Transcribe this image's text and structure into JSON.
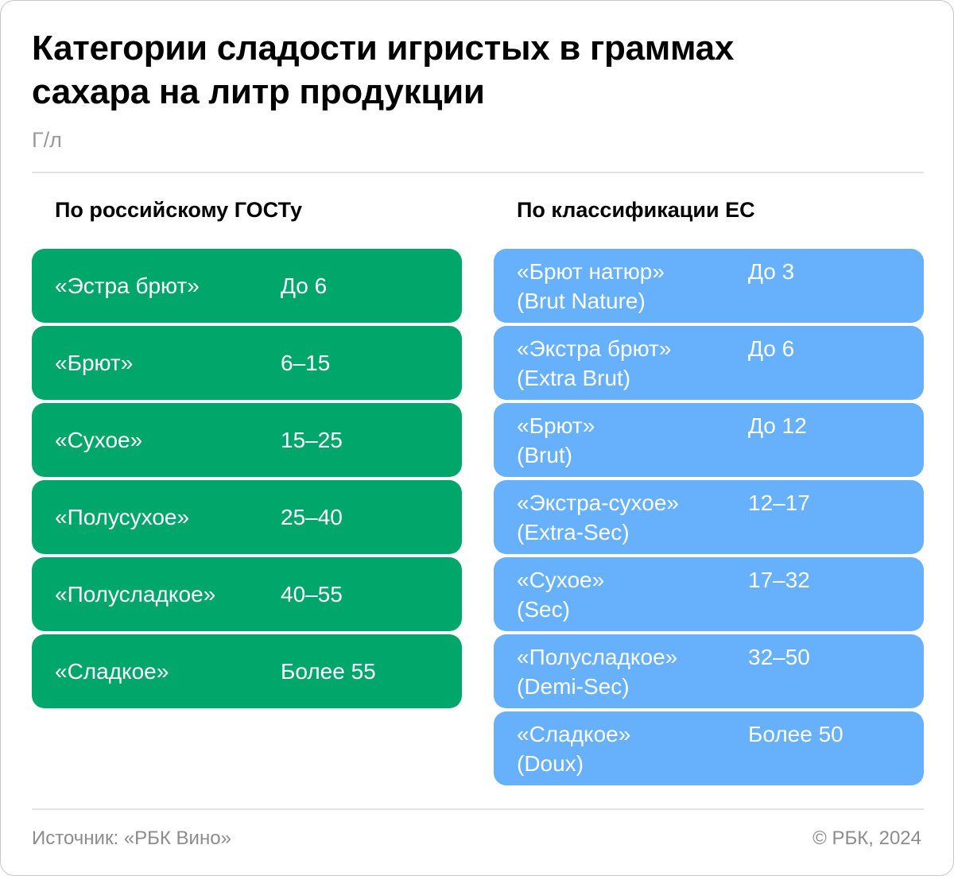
{
  "header": {
    "title": "Категории сладости игристых в граммах сахара на литр продукции",
    "unit": "Г/л"
  },
  "columns": {
    "russia": {
      "heading": "По российскому ГОСТу",
      "color": "#00a66a",
      "rows": [
        {
          "name": "«Эстра брют»",
          "value": "До 6"
        },
        {
          "name": "«Брют»",
          "value": "6–15"
        },
        {
          "name": "«Сухое»",
          "value": "15–25"
        },
        {
          "name": "«Полусухое»",
          "value": "25–40"
        },
        {
          "name": "«Полусладкое»",
          "value": "40–55"
        },
        {
          "name": "«Сладкое»",
          "value": "Более 55"
        }
      ]
    },
    "eu": {
      "heading": "По классификации ЕС",
      "color": "#66b0fc",
      "rows": [
        {
          "name": "«Брют натюр»",
          "alt": "(Brut Nature)",
          "value": "До 3"
        },
        {
          "name": "«Экстра брют»",
          "alt": "(Extra Brut)",
          "value": "До 6"
        },
        {
          "name": "«Брют»",
          "alt": "(Brut)",
          "value": "До 12"
        },
        {
          "name": "«Экстра-сухое»",
          "alt": "(Extra-Sec)",
          "value": "12–17"
        },
        {
          "name": "«Сухое»",
          "alt": "(Sec)",
          "value": "17–32"
        },
        {
          "name": "«Полусладкое»",
          "alt": "(Demi-Sec)",
          "value": "32–50"
        },
        {
          "name": "«Сладкое»",
          "alt": "(Doux)",
          "value": "Более 50"
        }
      ]
    }
  },
  "footer": {
    "source": "Источник: «РБК Вино»",
    "copyright": "© РБК, 2024"
  }
}
